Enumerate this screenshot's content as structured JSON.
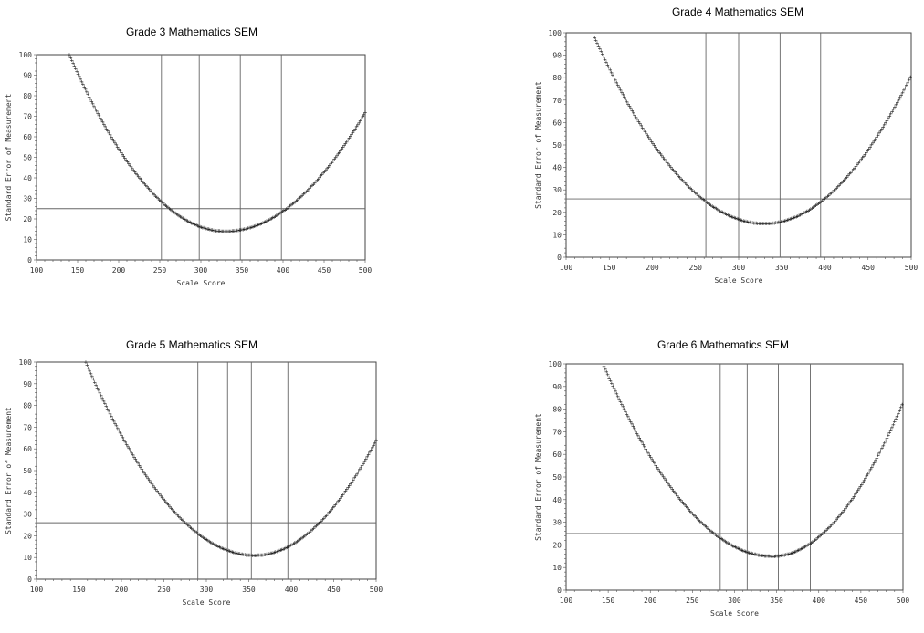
{
  "chart_data": [
    {
      "type": "scatter",
      "title": "Grade 3 Mathematics SEM",
      "xlabel": "Scale Score",
      "ylabel": "Standard Error of Measurement",
      "xlim": [
        100,
        500
      ],
      "ylim": [
        0,
        100
      ],
      "x_ticks": [
        "100",
        "150",
        "200",
        "250",
        "300",
        "350",
        "400",
        "450",
        "500"
      ],
      "y_ticks": [
        "0",
        "10",
        "20",
        "30",
        "40",
        "50",
        "60",
        "70",
        "80",
        "90",
        "100"
      ],
      "reference_lines": {
        "horizontal": [
          25
        ],
        "vertical": [
          252,
          298,
          348,
          398
        ]
      },
      "curve": {
        "x_start": 140,
        "x_end": 500,
        "min_x": 330,
        "min_y": 14,
        "y_at_start": 100,
        "y_at_end": 72
      },
      "grid": false,
      "legend": "none"
    },
    {
      "type": "scatter",
      "title": "Grade 4 Mathematics SEM",
      "xlabel": "Scale Score",
      "ylabel": "Standard Error of Measurement",
      "xlim": [
        100,
        500
      ],
      "ylim": [
        0,
        100
      ],
      "x_ticks": [
        "100",
        "150",
        "200",
        "250",
        "300",
        "350",
        "400",
        "450",
        "500"
      ],
      "y_ticks": [
        "0",
        "10",
        "20",
        "30",
        "40",
        "50",
        "60",
        "70",
        "80",
        "90",
        "100"
      ],
      "reference_lines": {
        "horizontal": [
          26
        ],
        "vertical": [
          262,
          300,
          348,
          395
        ]
      },
      "curve": {
        "x_start": 133,
        "x_end": 500,
        "min_x": 330,
        "min_y": 15,
        "y_at_start": 98,
        "y_at_end": 81
      },
      "grid": false,
      "legend": "none"
    },
    {
      "type": "scatter",
      "title": "Grade 5 Mathematics SEM",
      "xlabel": "Scale Score",
      "ylabel": "Standard Error of Measurement",
      "xlim": [
        100,
        500
      ],
      "ylim": [
        0,
        100
      ],
      "x_ticks": [
        "100",
        "150",
        "200",
        "250",
        "300",
        "350",
        "400",
        "450",
        "500"
      ],
      "y_ticks": [
        "0",
        "10",
        "20",
        "30",
        "40",
        "50",
        "60",
        "70",
        "80",
        "90",
        "100"
      ],
      "reference_lines": {
        "horizontal": [
          26
        ],
        "vertical": [
          290,
          325,
          353,
          396
        ]
      },
      "curve": {
        "x_start": 158,
        "x_end": 500,
        "min_x": 357,
        "min_y": 11,
        "y_at_start": 100,
        "y_at_end": 64
      },
      "grid": false,
      "legend": "none"
    },
    {
      "type": "scatter",
      "title": "Grade 6 Mathematics SEM",
      "xlabel": "Scale Score",
      "ylabel": "Standard Error of Measurement",
      "xlim": [
        100,
        500
      ],
      "ylim": [
        0,
        100
      ],
      "x_ticks": [
        "100",
        "150",
        "200",
        "250",
        "300",
        "350",
        "400",
        "450",
        "500"
      ],
      "y_ticks": [
        "0",
        "10",
        "20",
        "30",
        "40",
        "50",
        "60",
        "70",
        "80",
        "90",
        "100"
      ],
      "reference_lines": {
        "horizontal": [
          25
        ],
        "vertical": [
          283,
          315,
          352,
          390
        ]
      },
      "curve": {
        "x_start": 145,
        "x_end": 500,
        "min_x": 345,
        "min_y": 15,
        "y_at_start": 99,
        "y_at_end": 83
      },
      "grid": false,
      "legend": "none"
    }
  ]
}
